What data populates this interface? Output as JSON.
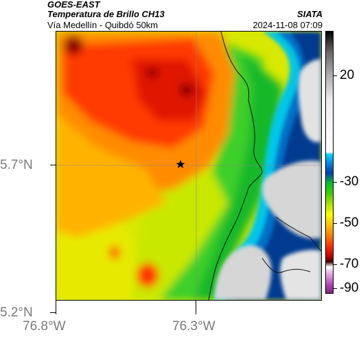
{
  "header": {
    "satellite": "GOES-EAST",
    "product": "Temperatura de Brillo CH13",
    "region": "Vía Medellín - Quibdó 50km",
    "source": "SIATA",
    "timestamp": "2024-11-08 07:09"
  },
  "axes": {
    "lat_ticks": [
      "5.7°N",
      "5.2°N"
    ],
    "lon_ticks": [
      "76.8°W",
      "76.3°W"
    ]
  },
  "colorbar": {
    "ticks": [
      "20",
      "-30",
      "-50",
      "-70",
      "-90"
    ]
  },
  "marker": {
    "icon": "star-icon"
  }
}
